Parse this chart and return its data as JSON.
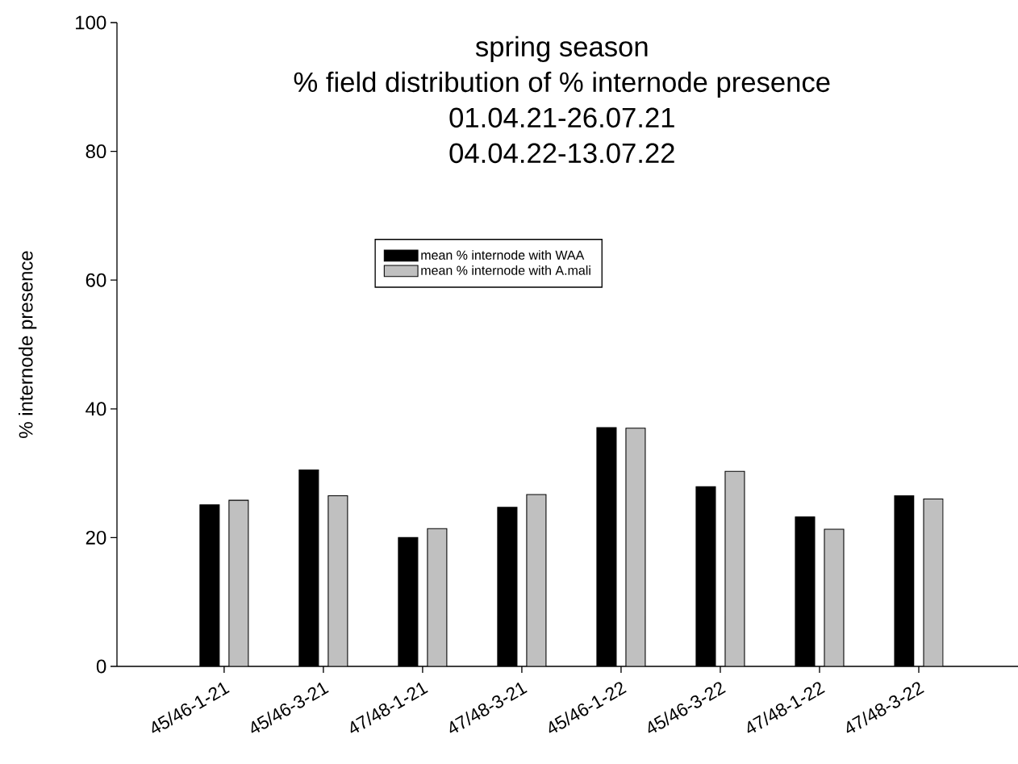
{
  "chart_data": {
    "type": "bar",
    "title": "spring season",
    "subtitle": "% field distribution of % internode presence",
    "annotations": [
      "01.04.21-26.07.21",
      "04.04.22-13.07.22"
    ],
    "ylabel": "% internode presence",
    "categories": [
      "45/46-1-21",
      "45/46-3-21",
      "47/48-1-21",
      "47/48-3-21",
      "45/46-1-22",
      "45/46-3-22",
      "47/48-1-22",
      "47/48-3-22"
    ],
    "series": [
      {
        "name": "mean % internode with WAA",
        "color": "#000000",
        "values": [
          25.1,
          30.5,
          20.0,
          24.7,
          37.1,
          27.9,
          23.2,
          26.5
        ]
      },
      {
        "name": "mean % internode with A.mali",
        "color": "#c0c0c0",
        "values": [
          25.8,
          26.5,
          21.4,
          26.7,
          37.0,
          30.3,
          21.3,
          26.0
        ]
      }
    ],
    "ylim": [
      0,
      100
    ],
    "yticks": [
      0,
      20,
      40,
      60,
      80,
      100
    ],
    "legend": "top",
    "grid": false
  }
}
